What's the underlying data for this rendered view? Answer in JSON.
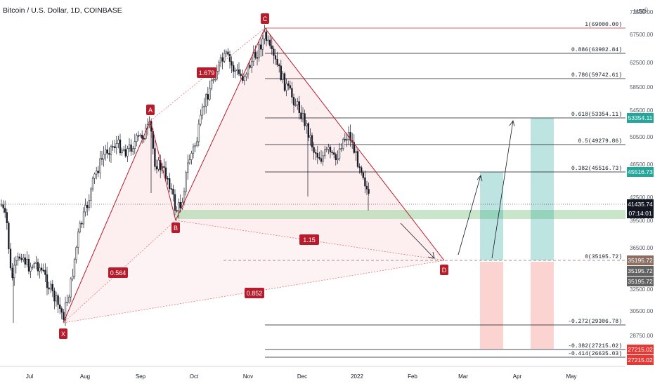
{
  "header": {
    "symbol_title": "Bitcoin / U.S. Dollar, 1D, COINBASE",
    "currency": "USD",
    "top_price_fragment": "0"
  },
  "price_axis": {
    "ticks": [
      "72500.00",
      "67500.00",
      "62500.00",
      "58500.00",
      "54500.00",
      "50500.00",
      "46500.00",
      "42500.00",
      "39500.00",
      "36500.00",
      "32500.00",
      "30500.00",
      "28750.00"
    ]
  },
  "time_axis": {
    "months": [
      "Jul",
      "Aug",
      "Sep",
      "Oct",
      "Nov",
      "Dec",
      "2022",
      "Feb",
      "Mar",
      "Apr",
      "May"
    ]
  },
  "pattern": {
    "points": [
      "X",
      "A",
      "B",
      "C",
      "D"
    ],
    "ratios": [
      "1.679",
      "0.564",
      "1.15",
      "0.852"
    ],
    "colors": {
      "pattern_red": "#b71c2c",
      "fill_pink": "#fbe2e4",
      "green_zone": "#a5d6a7",
      "teal": "#26a69a",
      "red_zone": "#f8b6b3"
    }
  },
  "fib_levels": [
    "1(69000.00)",
    "0.886(63902.84)",
    "0.786(59742.61)",
    "0.618(53354.11)",
    "0.5(49279.86)",
    "0.382(45516.73)",
    "0(35195.72)",
    "-0.272(29306.78)",
    "-0.382(27215.02)",
    "-0.414(26635.03)"
  ],
  "price_badges": {
    "current_price": "41435.74",
    "countdown": "07:14:01",
    "target_1": "53354.11",
    "target_2": "45516.73",
    "d_level_1": "35195.72",
    "d_level_2": "35195.72",
    "d_level_3": "35195.72",
    "stop_1": "27215.02",
    "stop_2": "27215.02"
  }
}
